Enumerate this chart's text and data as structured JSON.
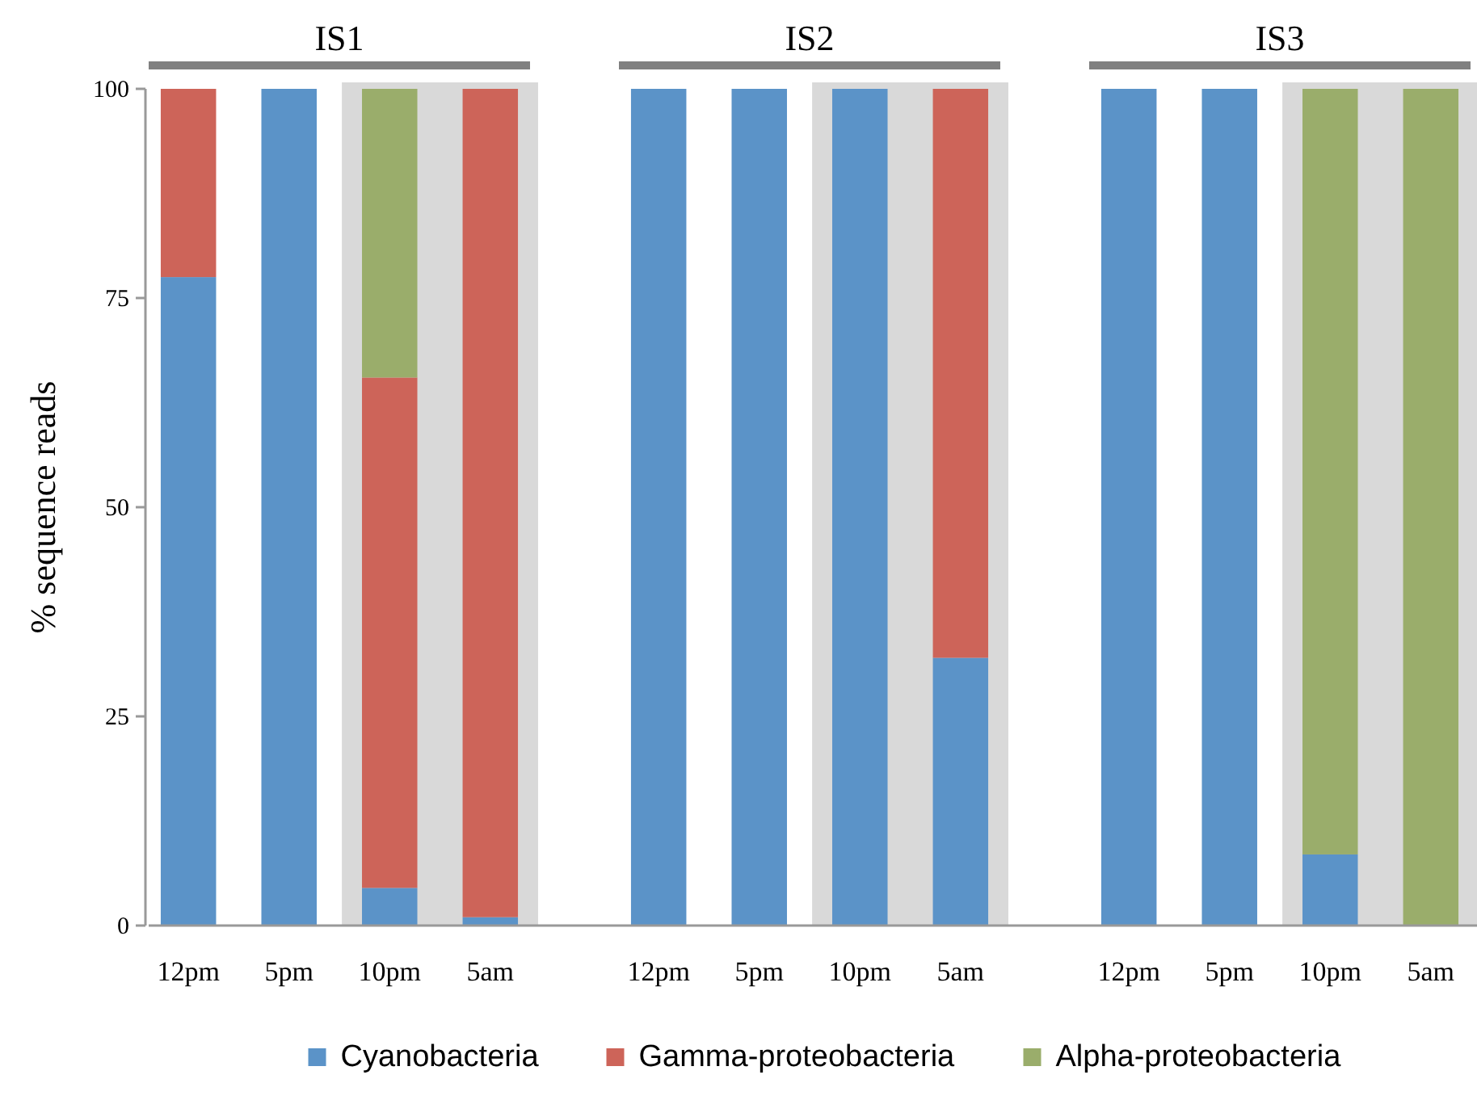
{
  "chart_data": [
    {
      "type": "bar",
      "title": "IS1",
      "ylabel": "% sequence reads",
      "categories": [
        "12pm",
        "5pm",
        "10pm",
        "5am"
      ],
      "stacked": true,
      "ylim": [
        0,
        100
      ],
      "yticks": [
        0,
        25,
        50,
        75,
        100
      ],
      "legend": "bottom",
      "bands": [
        {
          "axis": "x",
          "from": "10pm",
          "to": "5am",
          "color": "#d9d9d9"
        }
      ],
      "series": [
        {
          "name": "Cyanobacteria",
          "color": "#5b93c8",
          "values": [
            77.5,
            100,
            4.5,
            1
          ]
        },
        {
          "name": "Gamma-proteobacteria",
          "color": "#cd6459",
          "values": [
            22.5,
            0,
            61,
            99
          ]
        },
        {
          "name": "Alpha-proteobacteria",
          "color": "#9aad6b",
          "values": [
            0,
            0,
            34.5,
            0
          ]
        }
      ]
    },
    {
      "type": "bar",
      "title": "IS2",
      "categories": [
        "12pm",
        "5pm",
        "10pm",
        "5am"
      ],
      "stacked": true,
      "ylim": [
        0,
        100
      ],
      "tick_labels": "x",
      "bands": [
        {
          "axis": "x",
          "from": "10pm",
          "to": "5am",
          "color": "#d9d9d9"
        }
      ],
      "series": [
        {
          "color": "#5b93c8",
          "values": [
            100,
            100,
            100,
            32
          ]
        },
        {
          "color": "#cd6459",
          "values": [
            0,
            0,
            0,
            68
          ]
        },
        {
          "color": "#9aad6b",
          "values": [
            0,
            0,
            0,
            0
          ]
        }
      ]
    },
    {
      "type": "bar",
      "title": "IS3",
      "categories": [
        "12pm",
        "5pm",
        "10pm",
        "5am"
      ],
      "stacked": true,
      "ylim": [
        0,
        100
      ],
      "tick_labels": "x",
      "bands": [
        {
          "axis": "x",
          "from": "10pm",
          "to": "5am",
          "color": "#d9d9d9"
        }
      ],
      "series": [
        {
          "color": "#5b93c8",
          "values": [
            100,
            100,
            8.5,
            0
          ]
        },
        {
          "color": "#cd6459",
          "values": [
            0,
            0,
            0,
            0
          ]
        },
        {
          "color": "#9aad6b",
          "values": [
            0,
            0,
            91.5,
            100
          ]
        }
      ]
    }
  ]
}
